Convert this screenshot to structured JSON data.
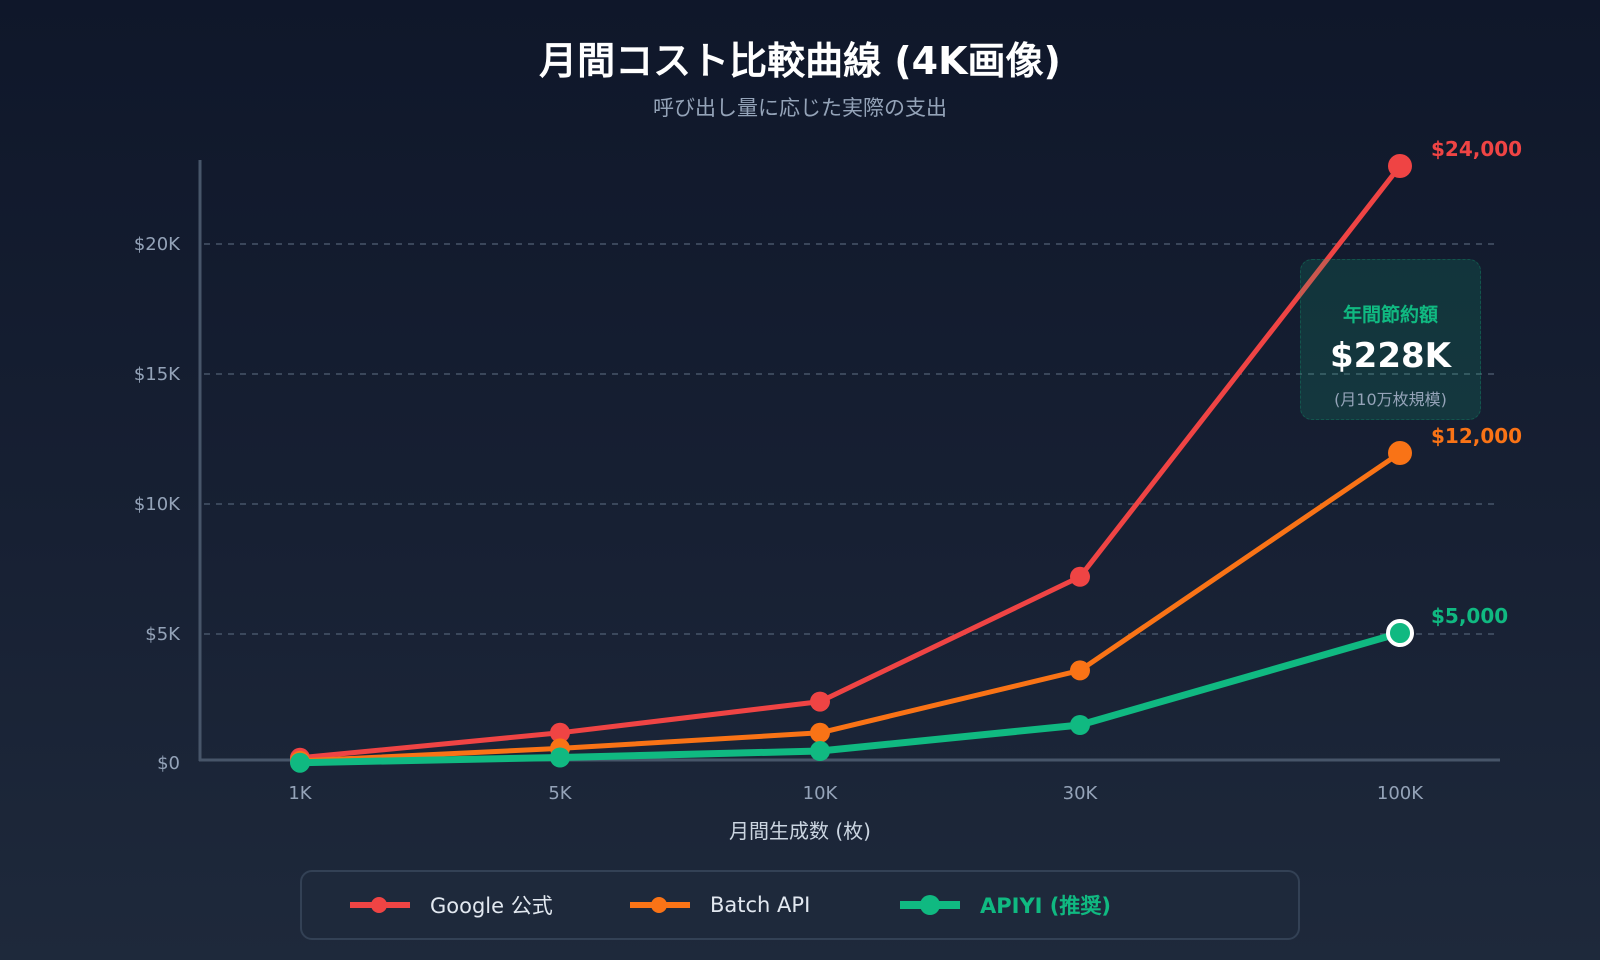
{
  "header": {
    "title": "月間コスト比較曲線 (4K画像)",
    "subtitle": "呼び出し量に応じた実際の支出"
  },
  "colors": {
    "google": "#ef4444",
    "batch": "#f97316",
    "apiyi": "#10b981",
    "grid": "#475569",
    "axis": "#475569"
  },
  "savings_box": {
    "title": "年間節約額",
    "value": "$228K",
    "note": "(月10万枚規模)"
  },
  "legend": {
    "items": [
      {
        "label": "Google 公式",
        "color": "#ef4444",
        "recommended": false
      },
      {
        "label": "Batch API",
        "color": "#f97316",
        "recommended": false
      },
      {
        "label": "APIYI (推奨)",
        "color": "#10b981",
        "recommended": true
      }
    ]
  },
  "chart_data": {
    "type": "line",
    "title": "月間コスト比較曲線 (4K画像)",
    "subtitle": "呼び出し量に応じた実際の支出",
    "xlabel": "月間生成数 (枚)",
    "ylabel": "",
    "categories": [
      "1K",
      "5K",
      "10K",
      "30K",
      "100K"
    ],
    "yticks": [
      "$0",
      "$5K",
      "$10K",
      "$15K",
      "$20K"
    ],
    "ytick_values": [
      0,
      5000,
      10000,
      15000,
      20000
    ],
    "ylim": [
      0,
      23000
    ],
    "grid": true,
    "legend_position": "bottom",
    "series": [
      {
        "name": "Google 公式",
        "color": "#ef4444",
        "values": [
          240,
          1200,
          2400,
          7200,
          24000
        ],
        "end_label": "$24,000"
      },
      {
        "name": "Batch API",
        "color": "#f97316",
        "values": [
          120,
          600,
          1200,
          3600,
          12000
        ],
        "end_label": "$12,000"
      },
      {
        "name": "APIYI (推奨)",
        "color": "#10b981",
        "values": [
          50,
          250,
          500,
          1500,
          5000
        ],
        "end_label": "$5,000"
      }
    ],
    "annotations": [
      {
        "text": "年間節約額 $228K (月10万枚規模)",
        "position": "near 100K upper right"
      }
    ]
  }
}
